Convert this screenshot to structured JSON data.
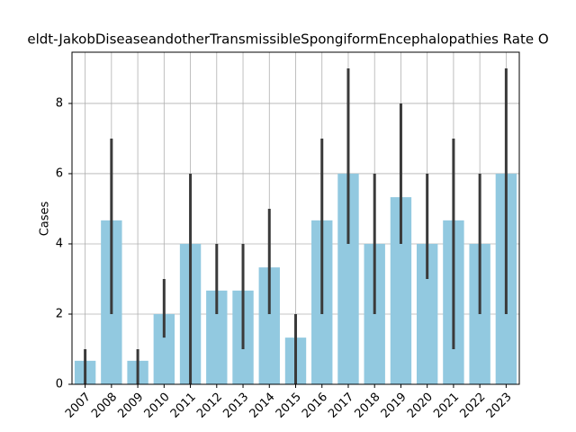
{
  "chart_data": {
    "type": "bar",
    "title": "eldt-JakobDiseaseandotherTransmissibleSpongiformEncephalopathies Rate O",
    "y_label": "Cases",
    "categories": [
      "2007",
      "2008",
      "2009",
      "2010",
      "2011",
      "2012",
      "2013",
      "2014",
      "2015",
      "2016",
      "2017",
      "2018",
      "2019",
      "2020",
      "2021",
      "2022",
      "2023"
    ],
    "values": [
      0.67,
      4.67,
      0.67,
      2,
      4,
      2.67,
      2.67,
      3.33,
      1.33,
      4.67,
      6,
      4,
      5.33,
      4,
      4.67,
      4,
      6
    ],
    "ci_low": [
      0,
      2,
      0,
      1.33,
      0,
      2,
      1,
      2,
      0,
      2,
      4,
      2,
      4,
      3,
      1,
      2,
      2
    ],
    "ci_high": [
      1,
      7,
      1,
      3,
      6,
      4,
      4,
      5,
      2,
      7,
      9,
      6,
      8,
      6,
      7,
      6,
      9
    ],
    "color": "#92c9e0",
    "error_color": "#3a3a3a",
    "ylim": [
      0,
      9.46
    ],
    "yticks": [
      0,
      2,
      4,
      6,
      8
    ],
    "grid": true
  }
}
